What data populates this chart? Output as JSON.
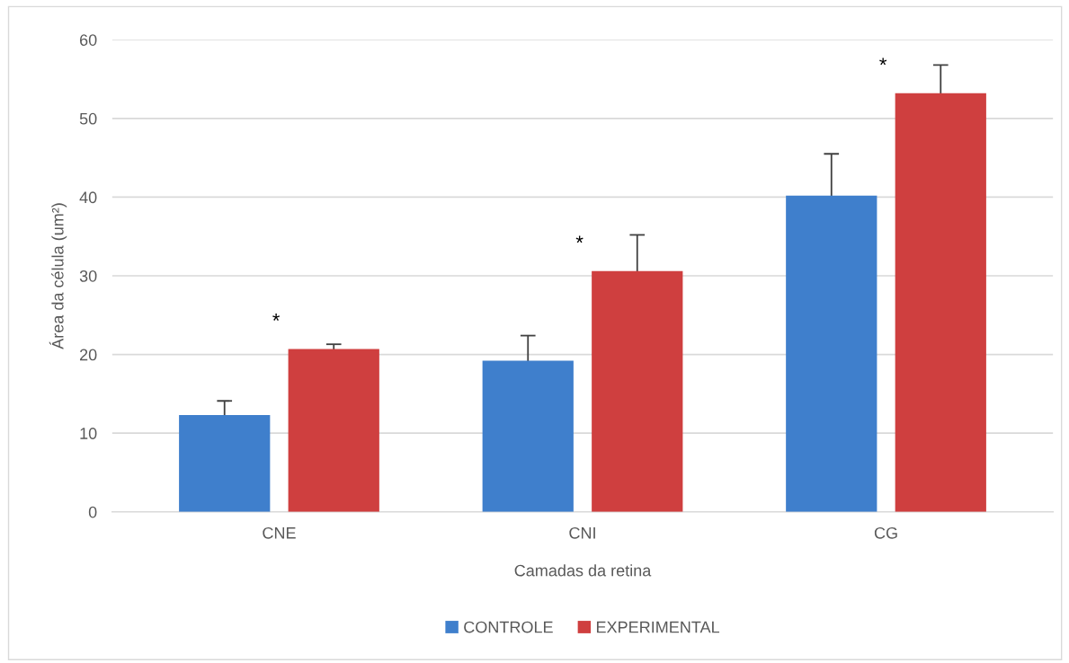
{
  "chart_data": {
    "type": "bar",
    "xlabel": "Camadas da retina",
    "ylabel": "Área da célula (um²)",
    "categories": [
      "CNE",
      "CNI",
      "CG"
    ],
    "series": [
      {
        "name": "CONTROLE",
        "color": "#3f7fcc",
        "values": [
          12.3,
          19.2,
          40.2
        ],
        "errors": [
          1.8,
          3.2,
          5.3
        ]
      },
      {
        "name": "EXPERIMENTAL",
        "color": "#cf3f3f",
        "values": [
          20.7,
          30.6,
          53.2
        ],
        "errors": [
          0.6,
          4.6,
          3.6
        ]
      }
    ],
    "ylim": [
      0,
      60
    ],
    "yticks": [
      0,
      10,
      20,
      30,
      40,
      50,
      60
    ],
    "grid": "y",
    "legend": "bottom",
    "annotations": [
      "*",
      "*",
      "*"
    ]
  }
}
